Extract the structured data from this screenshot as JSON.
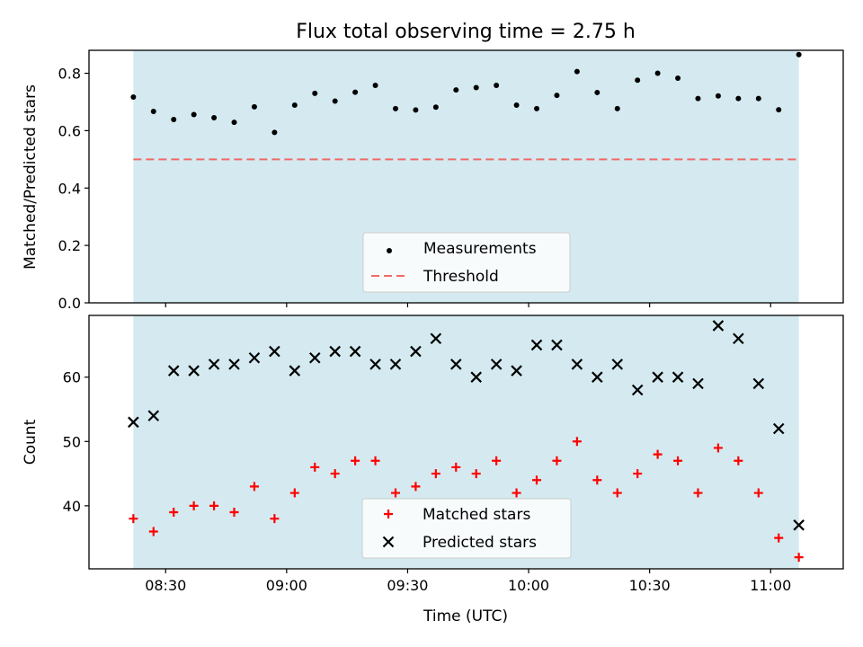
{
  "chart_data": [
    {
      "type": "scatter",
      "title": "Flux total observing time = 2.75 h",
      "xlabel": "",
      "ylabel": "Matched/Predicted stars",
      "ylim": [
        0,
        0.88
      ],
      "yticks": [
        0.0,
        0.2,
        0.4,
        0.6,
        0.8
      ],
      "ytick_labels": [
        "0.0",
        "0.2",
        "0.4",
        "0.6",
        "0.8"
      ],
      "shaded_span": [
        "08:22",
        "11:07"
      ],
      "shade_color": "#d4eaf0",
      "grid": false,
      "legend_position": "lower-center",
      "series": [
        {
          "name": "Measurements",
          "marker": "dot",
          "color": "#000000",
          "x": [
            "08:22",
            "08:27",
            "08:32",
            "08:37",
            "08:42",
            "08:47",
            "08:52",
            "08:57",
            "09:02",
            "09:07",
            "09:12",
            "09:17",
            "09:22",
            "09:27",
            "09:32",
            "09:37",
            "09:42",
            "09:47",
            "09:52",
            "09:57",
            "10:02",
            "10:07",
            "10:12",
            "10:17",
            "10:22",
            "10:27",
            "10:32",
            "10:37",
            "10:42",
            "10:47",
            "10:52",
            "10:57",
            "11:02",
            "11:07"
          ],
          "y": [
            0.717,
            0.667,
            0.639,
            0.656,
            0.645,
            0.629,
            0.683,
            0.594,
            0.689,
            0.73,
            0.703,
            0.734,
            0.758,
            0.677,
            0.672,
            0.682,
            0.742,
            0.75,
            0.758,
            0.689,
            0.677,
            0.723,
            0.806,
            0.733,
            0.677,
            0.776,
            0.8,
            0.783,
            0.712,
            0.721,
            0.712,
            0.712,
            0.673,
            0.865
          ]
        },
        {
          "name": "Threshold",
          "line_style": "dashed",
          "color": "#f06a6a",
          "x": [
            "08:22",
            "11:07"
          ],
          "y": [
            0.5,
            0.5
          ]
        }
      ]
    },
    {
      "type": "scatter",
      "title": "",
      "xlabel": "Time (UTC)",
      "ylabel": "Count",
      "ylim": [
        30.2,
        69.6
      ],
      "yticks": [
        40,
        50,
        60
      ],
      "ytick_labels": [
        "40",
        "50",
        "60"
      ],
      "xlim": [
        "08:11",
        "11:18"
      ],
      "xticks": [
        "08:30",
        "09:00",
        "09:30",
        "10:00",
        "10:30",
        "11:00"
      ],
      "xtick_labels": [
        "08:30",
        "09:00",
        "09:30",
        "10:00",
        "10:30",
        "11:00"
      ],
      "shaded_span": [
        "08:22",
        "11:07"
      ],
      "shade_color": "#d4eaf0",
      "grid": false,
      "legend_position": "lower-center",
      "series": [
        {
          "name": "Matched stars",
          "marker": "plus",
          "color": "#ff0000",
          "x": [
            "08:22",
            "08:27",
            "08:32",
            "08:37",
            "08:42",
            "08:47",
            "08:52",
            "08:57",
            "09:02",
            "09:07",
            "09:12",
            "09:17",
            "09:22",
            "09:27",
            "09:32",
            "09:37",
            "09:42",
            "09:47",
            "09:52",
            "09:57",
            "10:02",
            "10:07",
            "10:12",
            "10:17",
            "10:22",
            "10:27",
            "10:32",
            "10:37",
            "10:42",
            "10:47",
            "10:52",
            "10:57",
            "11:02",
            "11:07"
          ],
          "y": [
            38,
            36,
            39,
            40,
            40,
            39,
            43,
            38,
            42,
            46,
            45,
            47,
            47,
            42,
            43,
            45,
            46,
            45,
            47,
            42,
            44,
            47,
            50,
            44,
            42,
            45,
            48,
            47,
            42,
            49,
            47,
            42,
            35,
            32
          ]
        },
        {
          "name": "Predicted stars",
          "marker": "x",
          "color": "#000000",
          "x": [
            "08:22",
            "08:27",
            "08:32",
            "08:37",
            "08:42",
            "08:47",
            "08:52",
            "08:57",
            "09:02",
            "09:07",
            "09:12",
            "09:17",
            "09:22",
            "09:27",
            "09:32",
            "09:37",
            "09:42",
            "09:47",
            "09:52",
            "09:57",
            "10:02",
            "10:07",
            "10:12",
            "10:17",
            "10:22",
            "10:27",
            "10:32",
            "10:37",
            "10:42",
            "10:47",
            "10:52",
            "10:57",
            "11:02",
            "11:07"
          ],
          "y": [
            53,
            54,
            61,
            61,
            62,
            62,
            63,
            64,
            61,
            63,
            64,
            64,
            62,
            62,
            64,
            66,
            62,
            60,
            62,
            61,
            65,
            65,
            62,
            60,
            62,
            58,
            60,
            60,
            59,
            68,
            66,
            59,
            52,
            37
          ]
        }
      ]
    }
  ]
}
